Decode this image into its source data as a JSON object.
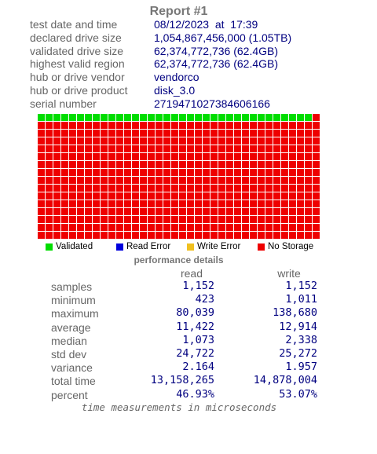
{
  "header": {
    "title": "Report #1"
  },
  "info": [
    {
      "label": "test date and time",
      "value": "08/12/2023  at  17:39"
    },
    {
      "label": "declared drive size",
      "value": "1,054,867,456,000 (1.05TB)"
    },
    {
      "label": "validated drive size",
      "value": "62,374,772,736 (62.4GB)"
    },
    {
      "label": "highest valid region",
      "value": "62,374,772,736 (62.4GB)"
    },
    {
      "label": "hub or drive vendor",
      "value": "vendorco"
    },
    {
      "label": "hub or drive product",
      "value": "disk_3.0"
    },
    {
      "label": "serial number",
      "value": "2719471027384606166"
    }
  ],
  "block_map": {
    "columns": 36,
    "rows": 16,
    "validated_blocks": 35
  },
  "legend": [
    {
      "label": "Validated",
      "color": "#00dd00"
    },
    {
      "label": "Read Error",
      "color": "#0000dd"
    },
    {
      "label": "Write Error",
      "color": "#f0c020"
    },
    {
      "label": "No Storage",
      "color": "#ee0000"
    }
  ],
  "performance": {
    "title": "performance details",
    "columns": [
      "read",
      "write"
    ],
    "rows": [
      {
        "label": "samples",
        "read": "1,152",
        "write": "1,152"
      },
      {
        "label": "minimum",
        "read": "423",
        "write": "1,011"
      },
      {
        "label": "maximum",
        "read": "80,039",
        "write": "138,680"
      },
      {
        "label": "average",
        "read": "11,422",
        "write": "12,914"
      },
      {
        "label": "median",
        "read": "1,073",
        "write": "2,338"
      },
      {
        "label": "std dev",
        "read": "24,722",
        "write": "25,272"
      },
      {
        "label": "variance",
        "read": "2.164",
        "write": "1.957"
      },
      {
        "label": "total time",
        "read": "13,158,265",
        "write": "14,878,004"
      },
      {
        "label": "percent",
        "read": "46.93%",
        "write": "53.07%"
      }
    ],
    "footnote": "time measurements in microseconds"
  }
}
